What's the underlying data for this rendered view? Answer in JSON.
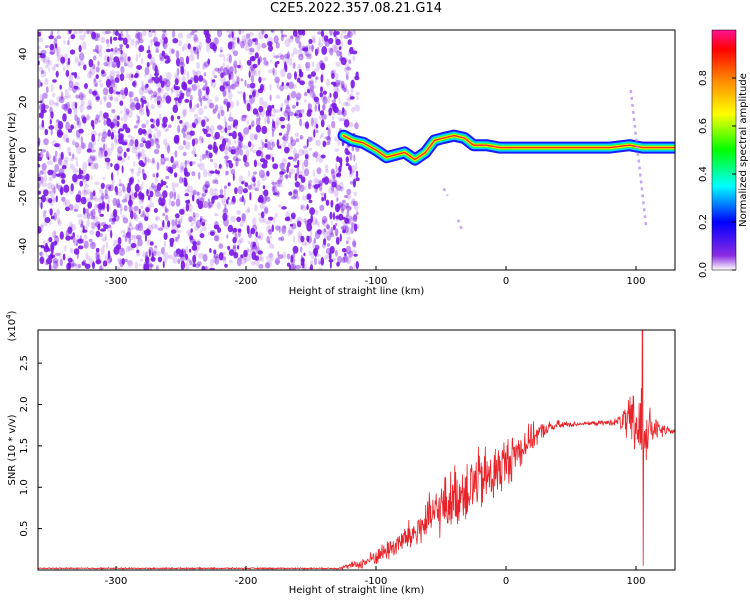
{
  "title": "C2E5.2022.357.08.21.G14",
  "chart_data": [
    {
      "type": "heatmap",
      "xlabel": "Height of straight line (km)",
      "ylabel": "Frequency (Hz)",
      "xlim": [
        -360,
        130
      ],
      "ylim": [
        -50,
        50
      ],
      "xticks": [
        -300,
        -200,
        -100,
        0,
        100
      ],
      "yticks": [
        -40,
        -20,
        0,
        20,
        40
      ],
      "colorbar": {
        "label": "Normalized spectral amplitude",
        "range": [
          0,
          1
        ],
        "ticks": [
          0.0,
          0.2,
          0.4,
          0.6,
          0.8
        ]
      },
      "noise_region": {
        "x": [
          -360,
          -120
        ],
        "y": [
          -50,
          50
        ],
        "color": "#7a18e6"
      },
      "signal_track": [
        {
          "x": -125,
          "f": 6
        },
        {
          "x": -118,
          "f": 4
        },
        {
          "x": -110,
          "f": 3
        },
        {
          "x": -100,
          "f": 0
        },
        {
          "x": -92,
          "f": -3
        },
        {
          "x": -85,
          "f": -2
        },
        {
          "x": -78,
          "f": -1
        },
        {
          "x": -70,
          "f": -4
        },
        {
          "x": -62,
          "f": -1
        },
        {
          "x": -55,
          "f": 4
        },
        {
          "x": -48,
          "f": 5
        },
        {
          "x": -40,
          "f": 6
        },
        {
          "x": -32,
          "f": 5
        },
        {
          "x": -25,
          "f": 2
        },
        {
          "x": -15,
          "f": 2
        },
        {
          "x": -5,
          "f": 1
        },
        {
          "x": 10,
          "f": 1
        },
        {
          "x": 40,
          "f": 1
        },
        {
          "x": 80,
          "f": 1
        },
        {
          "x": 95,
          "f": 2
        },
        {
          "x": 105,
          "f": 1
        },
        {
          "x": 130,
          "f": 1
        }
      ],
      "faint_lines": [
        {
          "from": [
            96,
            25
          ],
          "to": [
            108,
            -33
          ]
        },
        {
          "from": [
            -48,
            -16
          ],
          "to": [
            -45,
            -19
          ]
        },
        {
          "from": [
            -37,
            -29
          ],
          "to": [
            -34,
            -33
          ]
        }
      ]
    },
    {
      "type": "line",
      "xlabel": "Height of straight line (km)",
      "ylabel": "SNR (10 * v/v)",
      "yscale_label": "(x10",
      "yscale_exp": "4",
      "xlim": [
        -360,
        130
      ],
      "ylim": [
        0,
        2.9
      ],
      "xticks": [
        -300,
        -200,
        -100,
        0,
        100
      ],
      "yticks": [
        0.5,
        1.0,
        1.5,
        2.0,
        2.5
      ],
      "ytick_labels": [
        "0.5",
        "1.0",
        "1.5",
        "2.0",
        "2.5"
      ],
      "color": "#e8242a",
      "envelope": [
        {
          "x": -360,
          "y": 0.02
        },
        {
          "x": -130,
          "y": 0.02
        },
        {
          "x": -110,
          "y": 0.08
        },
        {
          "x": -90,
          "y": 0.25
        },
        {
          "x": -70,
          "y": 0.45
        },
        {
          "x": -50,
          "y": 0.75
        },
        {
          "x": -30,
          "y": 1.0
        },
        {
          "x": -10,
          "y": 1.15
        },
        {
          "x": 0,
          "y": 1.3
        },
        {
          "x": 10,
          "y": 1.45
        },
        {
          "x": 20,
          "y": 1.6
        },
        {
          "x": 30,
          "y": 1.7
        },
        {
          "x": 40,
          "y": 1.75
        },
        {
          "x": 60,
          "y": 1.77
        },
        {
          "x": 80,
          "y": 1.78
        },
        {
          "x": 90,
          "y": 1.8
        },
        {
          "x": 100,
          "y": 1.75
        },
        {
          "x": 110,
          "y": 1.7
        },
        {
          "x": 130,
          "y": 1.67
        }
      ],
      "noise_amplitude": [
        {
          "x": -360,
          "a": 0.01
        },
        {
          "x": -130,
          "a": 0.01
        },
        {
          "x": -110,
          "a": 0.08
        },
        {
          "x": -80,
          "a": 0.2
        },
        {
          "x": -50,
          "a": 0.4
        },
        {
          "x": -30,
          "a": 0.5
        },
        {
          "x": -10,
          "a": 0.45
        },
        {
          "x": 10,
          "a": 0.3
        },
        {
          "x": 30,
          "a": 0.1
        },
        {
          "x": 60,
          "a": 0.02
        },
        {
          "x": 85,
          "a": 0.05
        },
        {
          "x": 95,
          "a": 0.35
        },
        {
          "x": 105,
          "a": 0.8
        },
        {
          "x": 112,
          "a": 0.2
        },
        {
          "x": 130,
          "a": 0.02
        }
      ],
      "peak": {
        "x": 105,
        "y": 2.9,
        "trough": 0.05
      }
    }
  ]
}
